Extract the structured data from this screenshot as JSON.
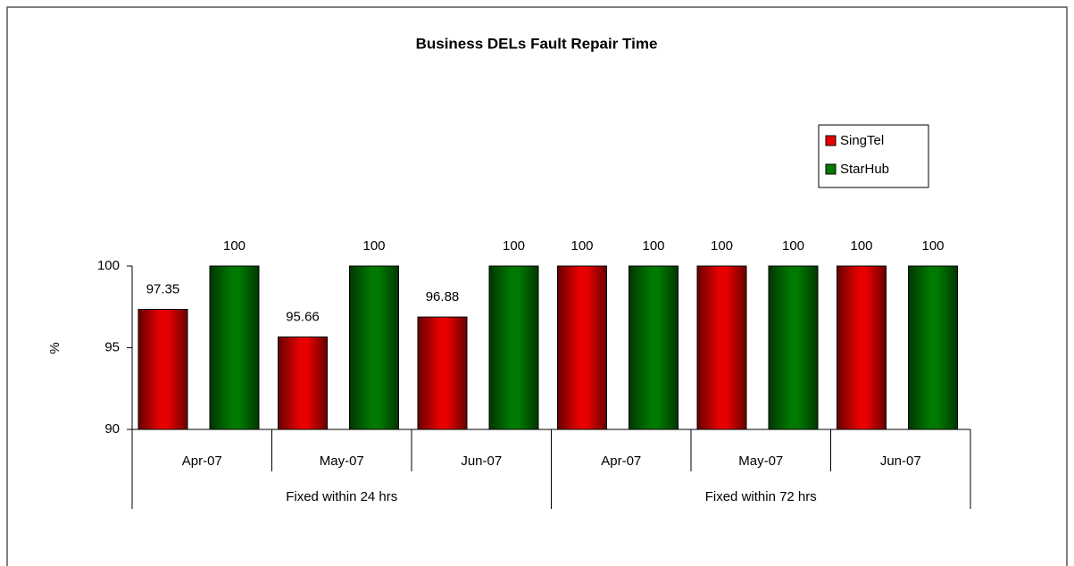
{
  "chart_data": {
    "type": "bar",
    "title": "Business DELs Fault Repair Time",
    "y_label": "%",
    "categories": [
      "Apr-07",
      "May-07",
      "Jun-07",
      "Apr-07",
      "May-07",
      "Jun-07"
    ],
    "groups": [
      "Fixed within 24 hrs",
      "Fixed within 72 hrs"
    ],
    "series": [
      {
        "name": "SingTel",
        "color": "#e80000",
        "values": [
          97.35,
          95.66,
          96.88,
          100,
          100,
          100
        ]
      },
      {
        "name": "StarHub",
        "color": "#007a00",
        "values": [
          100,
          100,
          100,
          100,
          100,
          100
        ]
      }
    ],
    "ylim": [
      90,
      100
    ],
    "yticks": [
      90,
      95,
      100
    ],
    "legend": "upper right"
  }
}
